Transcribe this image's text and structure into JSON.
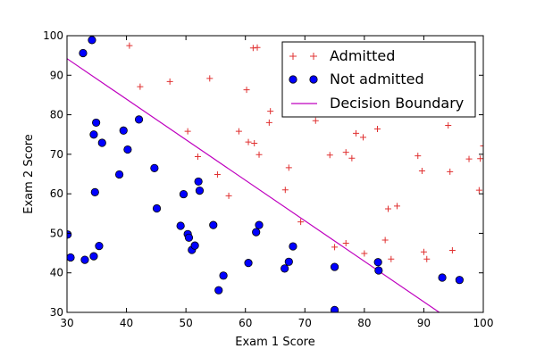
{
  "chart_data": {
    "type": "scatter",
    "xlabel": "Exam 1 Score",
    "ylabel": "Exam 2 Score",
    "xlim": [
      30,
      100
    ],
    "ylim": [
      30,
      100
    ],
    "xticks": [
      30,
      40,
      50,
      60,
      70,
      80,
      90,
      100
    ],
    "yticks": [
      30,
      40,
      50,
      60,
      70,
      80,
      90,
      100
    ],
    "grid": false,
    "legend_position": "top-right",
    "colors": {
      "admitted": "#e03030",
      "not_admitted": "#0000ff",
      "boundary": "#bf00bf"
    },
    "series": [
      {
        "name": "Admitted",
        "marker": "+",
        "points": [
          [
            40.5,
            97.5
          ],
          [
            42.3,
            87.1
          ],
          [
            47.3,
            88.4
          ],
          [
            50.3,
            75.8
          ],
          [
            52.0,
            69.4
          ],
          [
            54.0,
            89.2
          ],
          [
            55.3,
            64.9
          ],
          [
            57.2,
            59.5
          ],
          [
            58.9,
            75.8
          ],
          [
            60.2,
            86.3
          ],
          [
            60.5,
            73.1
          ],
          [
            61.3,
            96.9
          ],
          [
            61.5,
            72.8
          ],
          [
            62.0,
            97.0
          ],
          [
            62.3,
            69.9
          ],
          [
            64.0,
            78.0
          ],
          [
            64.2,
            80.9
          ],
          [
            66.7,
            61.0
          ],
          [
            67.3,
            66.6
          ],
          [
            69.3,
            52.9
          ],
          [
            71.8,
            78.5
          ],
          [
            74.2,
            69.8
          ],
          [
            75.0,
            46.5
          ],
          [
            76.9,
            47.5
          ],
          [
            76.9,
            70.5
          ],
          [
            77.9,
            69.0
          ],
          [
            78.6,
            75.3
          ],
          [
            79.8,
            74.3
          ],
          [
            80.0,
            44.9
          ],
          [
            82.2,
            76.4
          ],
          [
            83.5,
            48.3
          ],
          [
            84.0,
            56.2
          ],
          [
            84.5,
            43.5
          ],
          [
            85.5,
            56.9
          ],
          [
            89.0,
            69.6
          ],
          [
            89.7,
            65.8
          ],
          [
            90.0,
            45.3
          ],
          [
            90.5,
            43.5
          ],
          [
            94.1,
            77.3
          ],
          [
            94.4,
            65.6
          ],
          [
            94.8,
            45.7
          ],
          [
            97.6,
            68.8
          ],
          [
            99.3,
            60.9
          ],
          [
            99.5,
            68.9
          ],
          [
            100.0,
            72.1
          ]
        ]
      },
      {
        "name": "Not admitted",
        "marker": "o",
        "points": [
          [
            30.1,
            49.7
          ],
          [
            30.6,
            43.9
          ],
          [
            32.7,
            95.6
          ],
          [
            33.0,
            43.3
          ],
          [
            34.2,
            98.9
          ],
          [
            34.5,
            75.0
          ],
          [
            34.5,
            44.2
          ],
          [
            34.7,
            60.4
          ],
          [
            34.9,
            78.0
          ],
          [
            35.4,
            46.8
          ],
          [
            35.9,
            72.9
          ],
          [
            38.8,
            64.9
          ],
          [
            39.5,
            76.0
          ],
          [
            40.2,
            71.2
          ],
          [
            42.1,
            78.8
          ],
          [
            44.7,
            66.5
          ],
          [
            45.1,
            56.3
          ],
          [
            49.1,
            51.9
          ],
          [
            49.6,
            59.9
          ],
          [
            50.3,
            49.8
          ],
          [
            50.5,
            48.9
          ],
          [
            51.0,
            45.8
          ],
          [
            51.5,
            46.9
          ],
          [
            52.1,
            63.1
          ],
          [
            52.3,
            60.8
          ],
          [
            54.6,
            52.1
          ],
          [
            55.5,
            35.6
          ],
          [
            56.3,
            39.3
          ],
          [
            60.5,
            42.5
          ],
          [
            61.8,
            50.3
          ],
          [
            62.3,
            52.1
          ],
          [
            66.6,
            41.1
          ],
          [
            67.3,
            42.8
          ],
          [
            68.0,
            46.7
          ],
          [
            75.0,
            41.5
          ],
          [
            75.0,
            30.6
          ],
          [
            82.3,
            42.7
          ],
          [
            82.4,
            40.6
          ],
          [
            93.1,
            38.8
          ],
          [
            96.0,
            38.2
          ]
        ]
      },
      {
        "name": "Decision Boundary",
        "marker": "line",
        "points": [
          [
            30,
            94.2
          ],
          [
            92.6,
            30
          ]
        ]
      }
    ]
  }
}
